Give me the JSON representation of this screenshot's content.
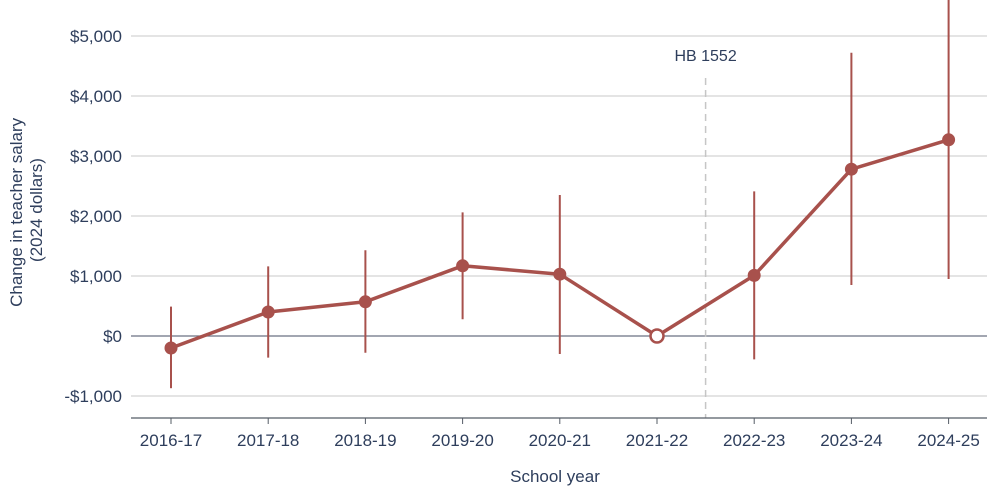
{
  "chart_data": {
    "type": "line",
    "title": "",
    "xlabel": "School year",
    "ylabel_lines": [
      "Change in teacher salary",
      "(2024 dollars)"
    ],
    "categories": [
      "2016-17",
      "2017-18",
      "2018-19",
      "2019-20",
      "2020-21",
      "2021-22",
      "2022-23",
      "2023-24",
      "2024-25"
    ],
    "y_ticks": [
      -1000,
      0,
      1000,
      2000,
      3000,
      4000,
      5000
    ],
    "y_tick_labels": [
      "-$1,000",
      "$0",
      "$1,000",
      "$2,000",
      "$3,000",
      "$4,000",
      "$5,000"
    ],
    "ylim": [
      -1400,
      5600
    ],
    "grid": true,
    "series": [
      {
        "values": [
          -200,
          400,
          570,
          1170,
          1030,
          0,
          1010,
          2780,
          3270
        ],
        "ci_low": [
          -870,
          -360,
          -280,
          280,
          -300,
          0,
          -390,
          850,
          950
        ],
        "ci_high": [
          490,
          1160,
          1430,
          2060,
          2350,
          0,
          2410,
          4720,
          5600
        ],
        "reference_point": "2021-22",
        "color": "#a8514c"
      }
    ],
    "annotations": [
      {
        "text": "HB 1552",
        "position": "between 2021-22 and 2022-23",
        "style": "dashed vertical line"
      }
    ],
    "colors": {
      "series": "#a8514c",
      "axis_text": "#2e3e5c",
      "grid": "#c8c8c8",
      "zero_line": "#6b7282",
      "annotation_line": "#c6c6c6"
    }
  }
}
